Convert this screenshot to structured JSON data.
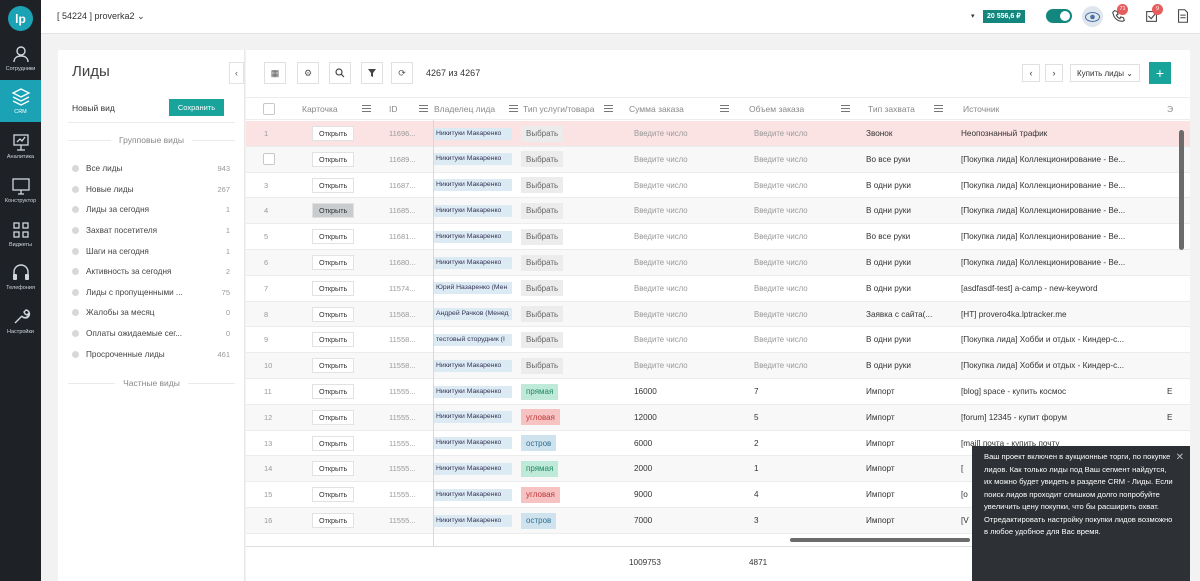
{
  "app": {
    "logo_text": "lp",
    "project_label": "[ 54224 ] proverka2",
    "balance": "20 556,6 ₽",
    "notifications_count": "71",
    "tasks_count": "9"
  },
  "rail": [
    {
      "label": "Сотрудники",
      "icon": "user-icon"
    },
    {
      "label": "CRM",
      "icon": "layers-icon"
    },
    {
      "label": "Аналитика",
      "icon": "presentation-icon"
    },
    {
      "label": "Конструктор",
      "icon": "monitor-icon"
    },
    {
      "label": "Виджеты",
      "icon": "grid-icon"
    },
    {
      "label": "Телефония",
      "icon": "headset-icon"
    },
    {
      "label": "Настройки",
      "icon": "wrench-icon"
    }
  ],
  "sidebar": {
    "title": "Лиды",
    "new_view_label": "Новый вид",
    "save_label": "Сохранить",
    "group_views_label": "Групповые виды",
    "private_views_label": "Частные виды",
    "views": [
      {
        "label": "Все лиды",
        "count": "943"
      },
      {
        "label": "Новые лиды",
        "count": "267"
      },
      {
        "label": "Лиды за сегодня",
        "count": "1"
      },
      {
        "label": "Захват посетителя",
        "count": "1"
      },
      {
        "label": "Шаги на сегодня",
        "count": "1"
      },
      {
        "label": "Активность за сегодня",
        "count": "2"
      },
      {
        "label": "Лиды с пропущенными ...",
        "count": "75"
      },
      {
        "label": "Жалобы за месяц",
        "count": "0"
      },
      {
        "label": "Оплаты ожидаемые сег...",
        "count": "0"
      },
      {
        "label": "Просроченные лиды",
        "count": "461"
      }
    ]
  },
  "toolbar": {
    "count_text": "4267 из 4267",
    "buy_leads_label": "Купить лиды",
    "add_label": "+"
  },
  "table": {
    "headers": {
      "card": "Карточка",
      "id": "ID",
      "owner": "Владелец лида",
      "service": "Тип услуги/товара",
      "sum": "Сумма заказа",
      "volume": "Объем заказа",
      "capture": "Тип захвата",
      "source": "Источник",
      "extra": "Э"
    },
    "open_label": "Открыть",
    "sum_placeholder": "Введите число",
    "rows": [
      {
        "n": "1",
        "id": "11696...",
        "owner": "Никитуки Макаренко",
        "service": "Выбрать",
        "service_style": "choose",
        "sum": "",
        "volume": "",
        "capture": "Звонок",
        "source": "Неопознанный трафик",
        "extra": ""
      },
      {
        "n": "",
        "id": "11689...",
        "owner": "Никитуки Макаренко",
        "service": "Выбрать",
        "service_style": "choose",
        "sum": "",
        "volume": "",
        "capture": "Во все руки",
        "source": "[Покупка лида] Коллекционирование - Ве...",
        "extra": ""
      },
      {
        "n": "3",
        "id": "11687...",
        "owner": "Никитуки Макаренко",
        "service": "Выбрать",
        "service_style": "choose",
        "sum": "",
        "volume": "",
        "capture": "В одни руки",
        "source": "[Покупка лида] Коллекционирование - Ве...",
        "extra": ""
      },
      {
        "n": "4",
        "id": "11685...",
        "owner": "Никитуки Макаренко",
        "service": "Выбрать",
        "service_style": "choose",
        "sum": "",
        "volume": "",
        "capture": "В одни руки",
        "source": "[Покупка лида] Коллекционирование - Ве...",
        "extra": ""
      },
      {
        "n": "5",
        "id": "11681...",
        "owner": "Никитуки Макаренко",
        "service": "Выбрать",
        "service_style": "choose",
        "sum": "",
        "volume": "",
        "capture": "Во все руки",
        "source": "[Покупка лида] Коллекционирование - Ве...",
        "extra": ""
      },
      {
        "n": "6",
        "id": "11680...",
        "owner": "Никитуки Макаренко",
        "service": "Выбрать",
        "service_style": "choose",
        "sum": "",
        "volume": "",
        "capture": "В одни руки",
        "source": "[Покупка лида] Коллекционирование - Ве...",
        "extra": ""
      },
      {
        "n": "7",
        "id": "11574...",
        "owner": "Юрий Назаренко (Мен",
        "service": "Выбрать",
        "service_style": "choose",
        "sum": "",
        "volume": "",
        "capture": "В одни руки",
        "source": "[asdfasdf-test] a-camp - new-keyword",
        "extra": ""
      },
      {
        "n": "8",
        "id": "11568...",
        "owner": "Андрей Рачков (Менед",
        "service": "Выбрать",
        "service_style": "choose",
        "sum": "",
        "volume": "",
        "capture": "Заявка с сайта(...",
        "source": "[HT] provero4ka.lptracker.me",
        "extra": ""
      },
      {
        "n": "9",
        "id": "11558...",
        "owner": "тестовый сторудник (І",
        "service": "Выбрать",
        "service_style": "choose",
        "sum": "",
        "volume": "",
        "capture": "В одни руки",
        "source": "[Покупка лида] Хобби и отдых - Киндер-с...",
        "extra": ""
      },
      {
        "n": "10",
        "id": "11558...",
        "owner": "Никитуки Макаренко",
        "service": "Выбрать",
        "service_style": "choose",
        "sum": "",
        "volume": "",
        "capture": "В одни руки",
        "source": "[Покупка лида] Хобби и отдых - Киндер-с...",
        "extra": ""
      },
      {
        "n": "11",
        "id": "11555...",
        "owner": "Никитуки Макаренко",
        "service": "прямая",
        "service_style": "straight",
        "sum": "16000",
        "volume": "7",
        "capture": "Импорт",
        "source": "[blog] space - купить космос",
        "extra": "E"
      },
      {
        "n": "12",
        "id": "11555...",
        "owner": "Никитуки Макаренко",
        "service": "угловая",
        "service_style": "corner",
        "sum": "12000",
        "volume": "5",
        "capture": "Импорт",
        "source": "[forum] 12345 - купит форум",
        "extra": "E"
      },
      {
        "n": "13",
        "id": "11555...",
        "owner": "Никитуки Макаренко",
        "service": "остров",
        "service_style": "island",
        "sum": "6000",
        "volume": "2",
        "capture": "Импорт",
        "source": "[mail] почта - купить почту",
        "extra": ""
      },
      {
        "n": "14",
        "id": "11555...",
        "owner": "Никитуки Макаренко",
        "service": "прямая",
        "service_style": "straight",
        "sum": "2000",
        "volume": "1",
        "capture": "Импорт",
        "source": "[",
        "extra": ""
      },
      {
        "n": "15",
        "id": "11555...",
        "owner": "Никитуки Макаренко",
        "service": "угловая",
        "service_style": "corner",
        "sum": "9000",
        "volume": "4",
        "capture": "Импорт",
        "source": "[o",
        "extra": ""
      },
      {
        "n": "16",
        "id": "11555...",
        "owner": "Никитуки Макаренко",
        "service": "остров",
        "service_style": "island",
        "sum": "7000",
        "volume": "3",
        "capture": "Импорт",
        "source": "[V",
        "extra": ""
      }
    ],
    "totals": {
      "sum": "1009753",
      "volume": "4871"
    }
  },
  "tooltip": {
    "text": "Ваш проект включен в аукционные торги, по покупке лидов. Как только лиды под Ваш сегмент найдутся, их можно будет увидеть в разделе CRM - Лиды. Если поиск лидов проходит слишком долго попробуйте увеличить цену покупки, что бы расширить охват. Отредактировать настройку покупки лидов возможно в любое удобное для Вас время."
  },
  "colors": {
    "accent": "#18a39b",
    "rail_bg": "#1e2227",
    "highlight_row": "#fbe3e3",
    "badge": "#e75c5c"
  }
}
